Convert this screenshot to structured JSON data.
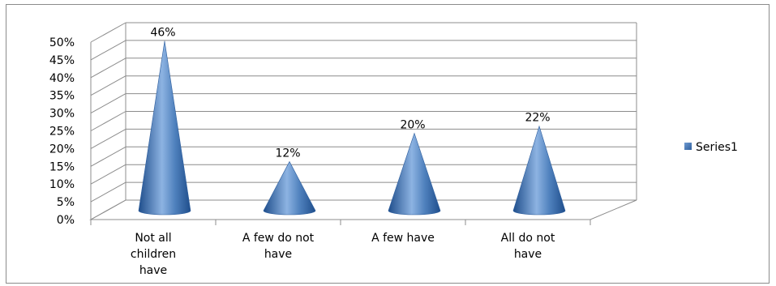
{
  "chart_data": {
    "type": "bar",
    "style": "3d-cone",
    "categories": [
      "Not all children have",
      "A few do not have",
      "A few have",
      "All do not have"
    ],
    "category_lines": [
      [
        "Not all",
        "children",
        "have"
      ],
      [
        "A few do not",
        "have"
      ],
      [
        "A few have"
      ],
      [
        "All do not",
        "have"
      ]
    ],
    "series": [
      {
        "name": "Series1",
        "values": [
          0.46,
          0.12,
          0.2,
          0.22
        ],
        "labels": [
          "46%",
          "12%",
          "20%",
          "22%"
        ]
      }
    ],
    "ylim": [
      0,
      0.5
    ],
    "yticks": [
      "0%",
      "5%",
      "10%",
      "15%",
      "20%",
      "25%",
      "30%",
      "35%",
      "40%",
      "45%",
      "50%"
    ],
    "grid": true,
    "legend_position": "right",
    "color": "#4f81bd"
  }
}
